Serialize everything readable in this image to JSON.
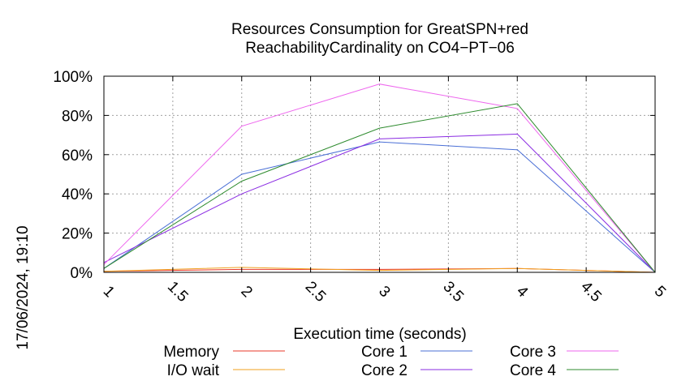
{
  "chart_data": {
    "type": "line",
    "title": [
      "Resources Consumption for GreatSPN+red",
      "ReachabilityCardinality on CO4−PT−06"
    ],
    "xlabel": "Execution time (seconds)",
    "ylabel": "",
    "xlim": [
      1,
      5
    ],
    "ylim": [
      0,
      100
    ],
    "x_ticks": [
      "1",
      "1.5",
      "2",
      "2.5",
      "3",
      "3.5",
      "4",
      "4.5",
      "5"
    ],
    "y_ticks": [
      "0%",
      "20%",
      "40%",
      "60%",
      "80%",
      "100%"
    ],
    "grid": true,
    "legend_position": "bottom",
    "timestamp": "17/06/2024, 19:10",
    "series": [
      {
        "name": "Memory",
        "color": "#e8382a",
        "x": [
          1,
          2,
          3,
          4,
          5
        ],
        "y": [
          0.5,
          1.5,
          1.5,
          2,
          0
        ]
      },
      {
        "name": "I/O wait",
        "color": "#f0a01e",
        "x": [
          1,
          2,
          3,
          4,
          5
        ],
        "y": [
          0.5,
          2.5,
          1,
          2,
          0
        ]
      },
      {
        "name": "Core 1",
        "color": "#4a6fd6",
        "x": [
          1,
          2,
          3,
          4,
          5
        ],
        "y": [
          2,
          50,
          66.5,
          62.5,
          0
        ]
      },
      {
        "name": "Core 2",
        "color": "#8a2be2",
        "x": [
          1,
          2,
          3,
          4,
          5
        ],
        "y": [
          5,
          40,
          68,
          70.5,
          0
        ]
      },
      {
        "name": "Core 3",
        "color": "#ee66ee",
        "x": [
          1,
          2,
          3,
          4,
          5
        ],
        "y": [
          4,
          74.5,
          96,
          83.5,
          0
        ]
      },
      {
        "name": "Core 4",
        "color": "#2e8b2e",
        "x": [
          1,
          2,
          3,
          4,
          5
        ],
        "y": [
          2,
          46.5,
          73.5,
          86,
          0
        ]
      }
    ]
  }
}
